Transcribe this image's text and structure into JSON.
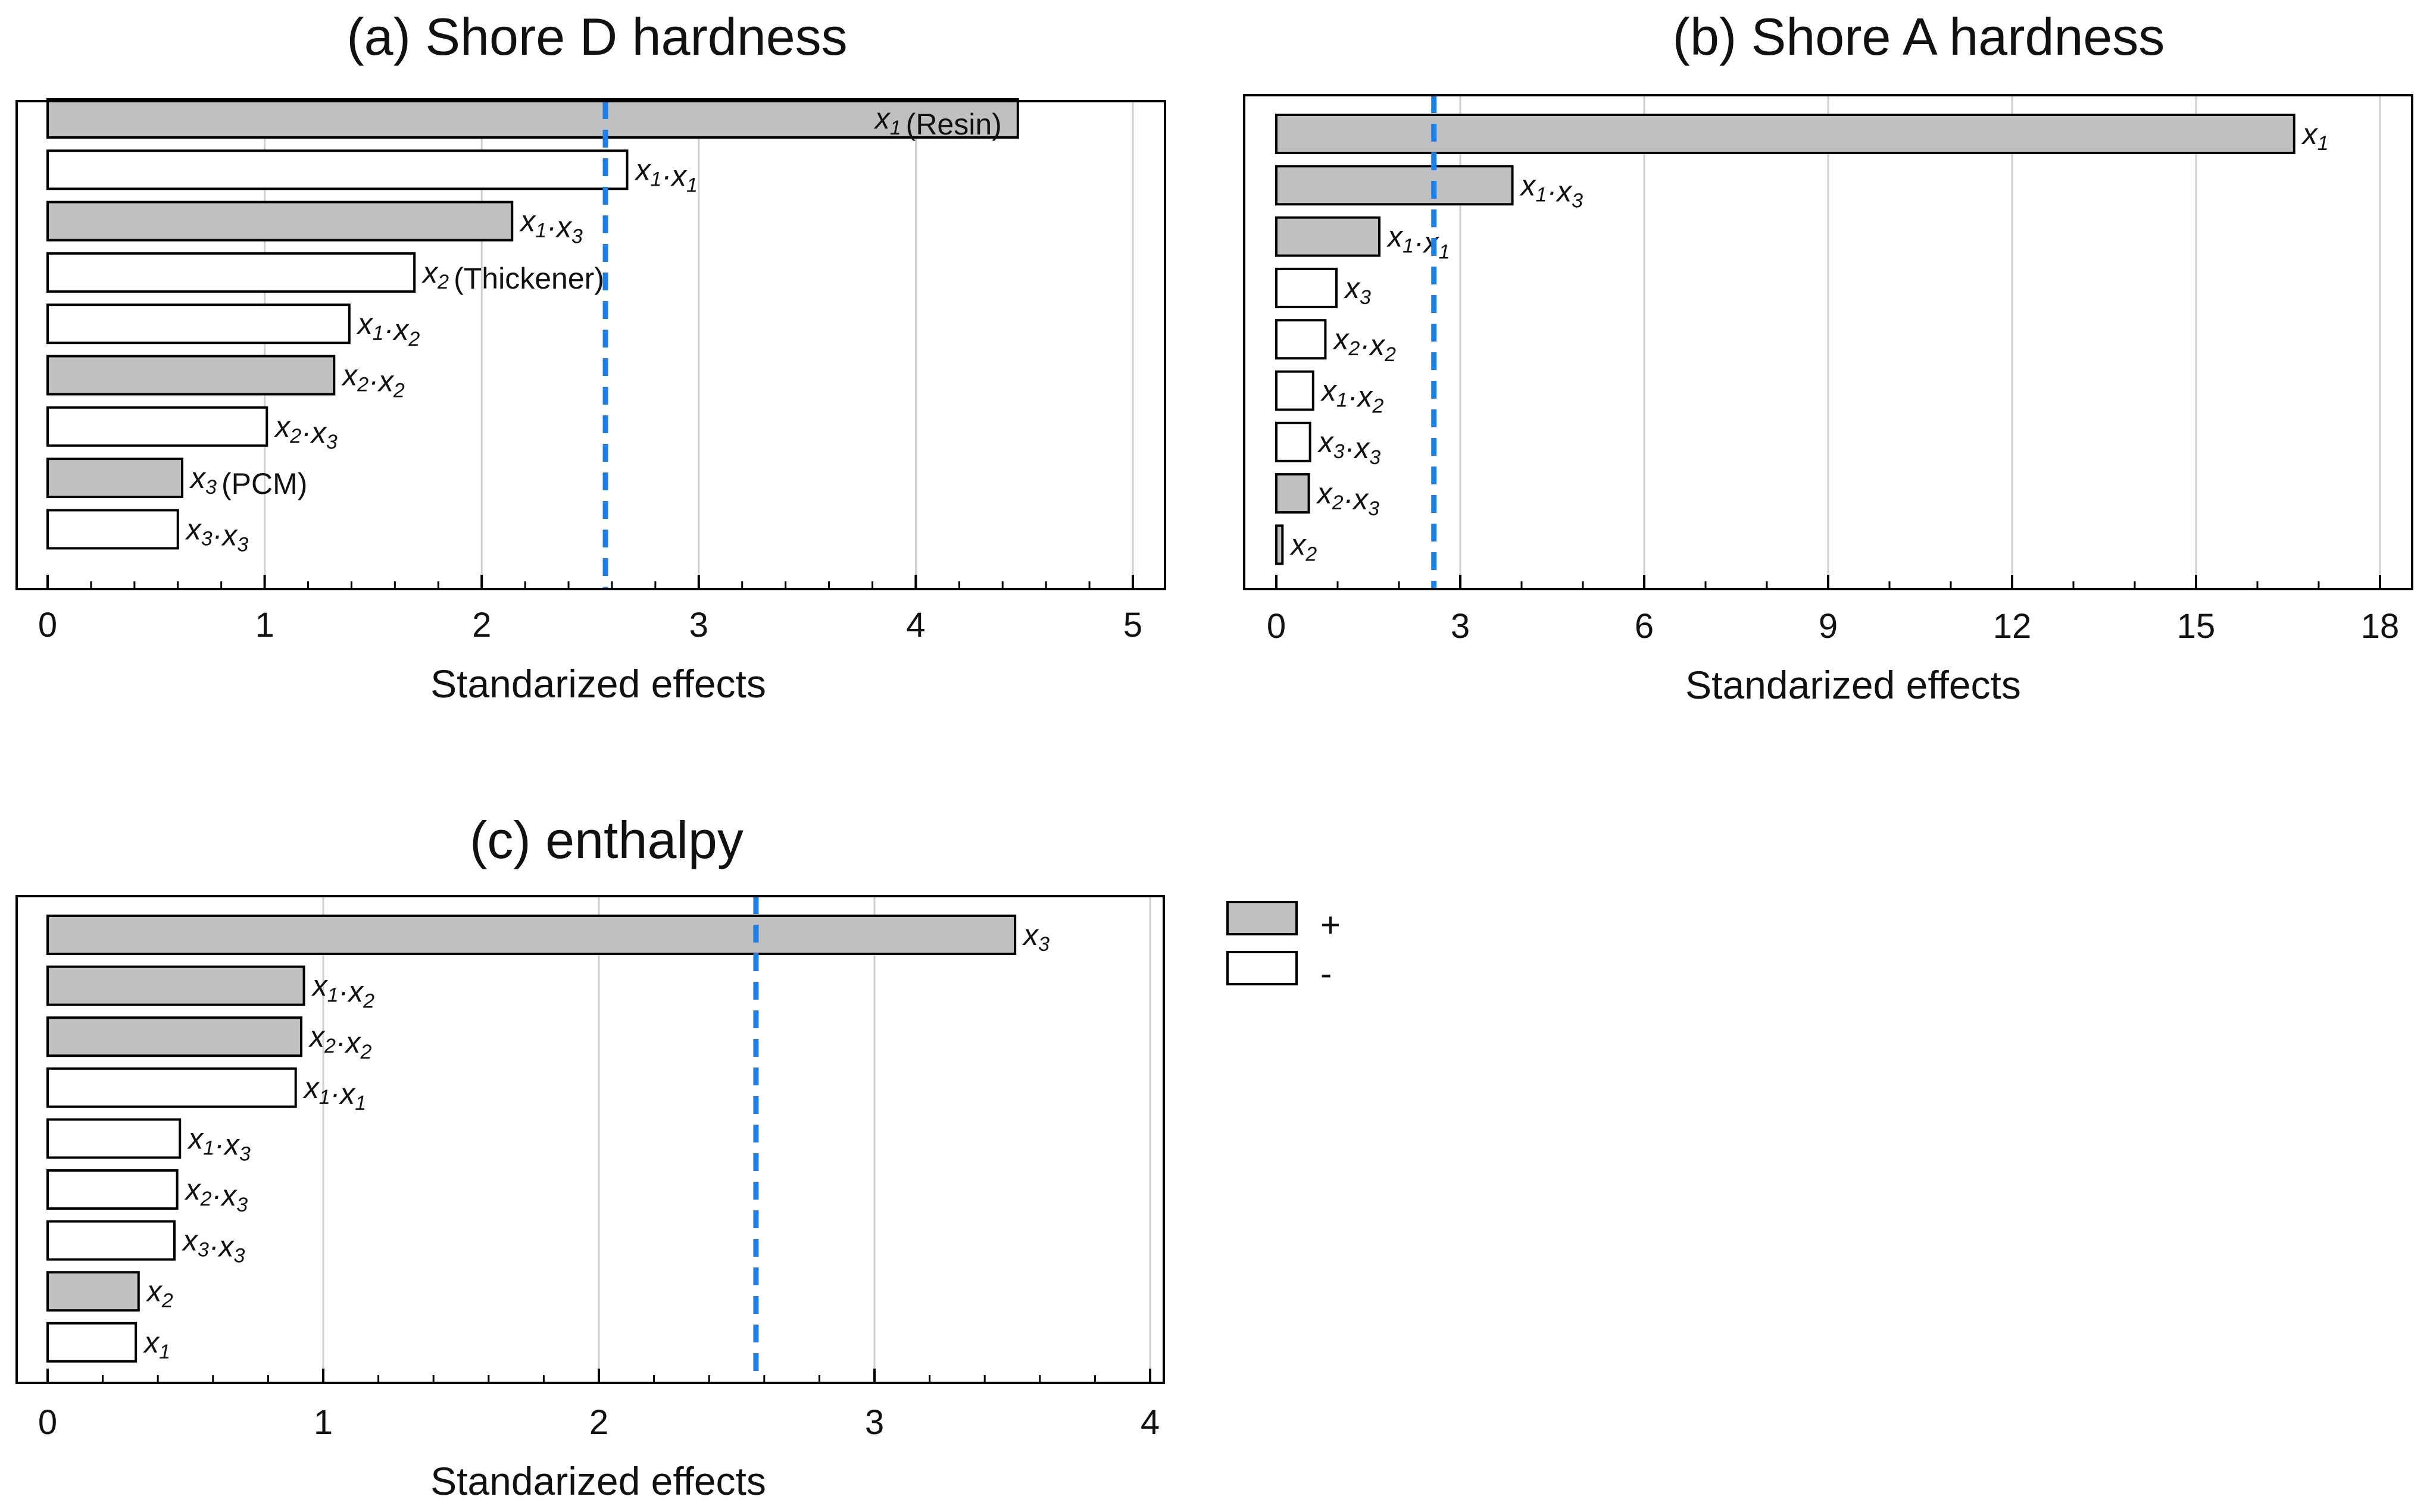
{
  "colors": {
    "positive": "#c0c0c0",
    "negative": "#ffffff",
    "threshold": "#1e7fe6",
    "grid": "#cfcfcf",
    "frame": "#000000"
  },
  "legend": {
    "positive_label": "+",
    "negative_label": "-"
  },
  "chart_data": [
    {
      "type": "bar",
      "orientation": "horizontal",
      "title": "(a) Shore D hardness",
      "xlabel": "Standarized effects",
      "xlim": [
        0,
        5
      ],
      "xticks": [
        0,
        1,
        2,
        3,
        4,
        5
      ],
      "threshold": 2.57,
      "bars": [
        {
          "term": [
            "1"
          ],
          "note": "(Resin)",
          "value": 4.47,
          "sign": "+"
        },
        {
          "term": [
            "1",
            "1"
          ],
          "note": "",
          "value": 2.67,
          "sign": "-"
        },
        {
          "term": [
            "1",
            "3"
          ],
          "note": "",
          "value": 2.14,
          "sign": "+"
        },
        {
          "term": [
            "2"
          ],
          "note": "(Thickener)",
          "value": 1.69,
          "sign": "-"
        },
        {
          "term": [
            "1",
            "2"
          ],
          "note": "",
          "value": 1.39,
          "sign": "-"
        },
        {
          "term": [
            "2",
            "2"
          ],
          "note": "",
          "value": 1.32,
          "sign": "+"
        },
        {
          "term": [
            "2",
            "3"
          ],
          "note": "",
          "value": 1.01,
          "sign": "-"
        },
        {
          "term": [
            "3"
          ],
          "note": "(PCM)",
          "value": 0.62,
          "sign": "+"
        },
        {
          "term": [
            "3",
            "3"
          ],
          "note": "",
          "value": 0.6,
          "sign": "-"
        }
      ]
    },
    {
      "type": "bar",
      "orientation": "horizontal",
      "title": "(b) Shore A hardness",
      "xlabel": "Standarized effects",
      "xlim": [
        0,
        18
      ],
      "xticks": [
        0,
        3,
        6,
        9,
        12,
        15,
        18
      ],
      "threshold": 2.57,
      "bars": [
        {
          "term": [
            "1"
          ],
          "note": "",
          "value": 16.6,
          "sign": "+"
        },
        {
          "term": [
            "1",
            "3"
          ],
          "note": "",
          "value": 3.85,
          "sign": "+"
        },
        {
          "term": [
            "1",
            "1"
          ],
          "note": "",
          "value": 1.68,
          "sign": "+"
        },
        {
          "term": [
            "3"
          ],
          "note": "",
          "value": 0.98,
          "sign": "-"
        },
        {
          "term": [
            "2",
            "2"
          ],
          "note": "",
          "value": 0.8,
          "sign": "-"
        },
        {
          "term": [
            "1",
            "2"
          ],
          "note": "",
          "value": 0.6,
          "sign": "-"
        },
        {
          "term": [
            "3",
            "3"
          ],
          "note": "",
          "value": 0.55,
          "sign": "-"
        },
        {
          "term": [
            "2",
            "3"
          ],
          "note": "",
          "value": 0.53,
          "sign": "+"
        },
        {
          "term": [
            "2"
          ],
          "note": "",
          "value": 0.1,
          "sign": "+"
        }
      ]
    },
    {
      "type": "bar",
      "orientation": "horizontal",
      "title": "(c) enthalpy",
      "xlabel": "Standarized effects",
      "xlim": [
        0,
        4
      ],
      "xticks": [
        0,
        1,
        2,
        3,
        4
      ],
      "threshold": 2.57,
      "bars": [
        {
          "term": [
            "3"
          ],
          "note": "",
          "value": 3.51,
          "sign": "+"
        },
        {
          "term": [
            "1",
            "2"
          ],
          "note": "",
          "value": 0.93,
          "sign": "+"
        },
        {
          "term": [
            "2",
            "2"
          ],
          "note": "",
          "value": 0.92,
          "sign": "+"
        },
        {
          "term": [
            "1",
            "1"
          ],
          "note": "",
          "value": 0.9,
          "sign": "-"
        },
        {
          "term": [
            "1",
            "3"
          ],
          "note": "",
          "value": 0.48,
          "sign": "-"
        },
        {
          "term": [
            "2",
            "3"
          ],
          "note": "",
          "value": 0.47,
          "sign": "-"
        },
        {
          "term": [
            "3",
            "3"
          ],
          "note": "",
          "value": 0.46,
          "sign": "-"
        },
        {
          "term": [
            "2"
          ],
          "note": "",
          "value": 0.33,
          "sign": "+"
        },
        {
          "term": [
            "1"
          ],
          "note": "",
          "value": 0.32,
          "sign": "-"
        }
      ]
    }
  ]
}
